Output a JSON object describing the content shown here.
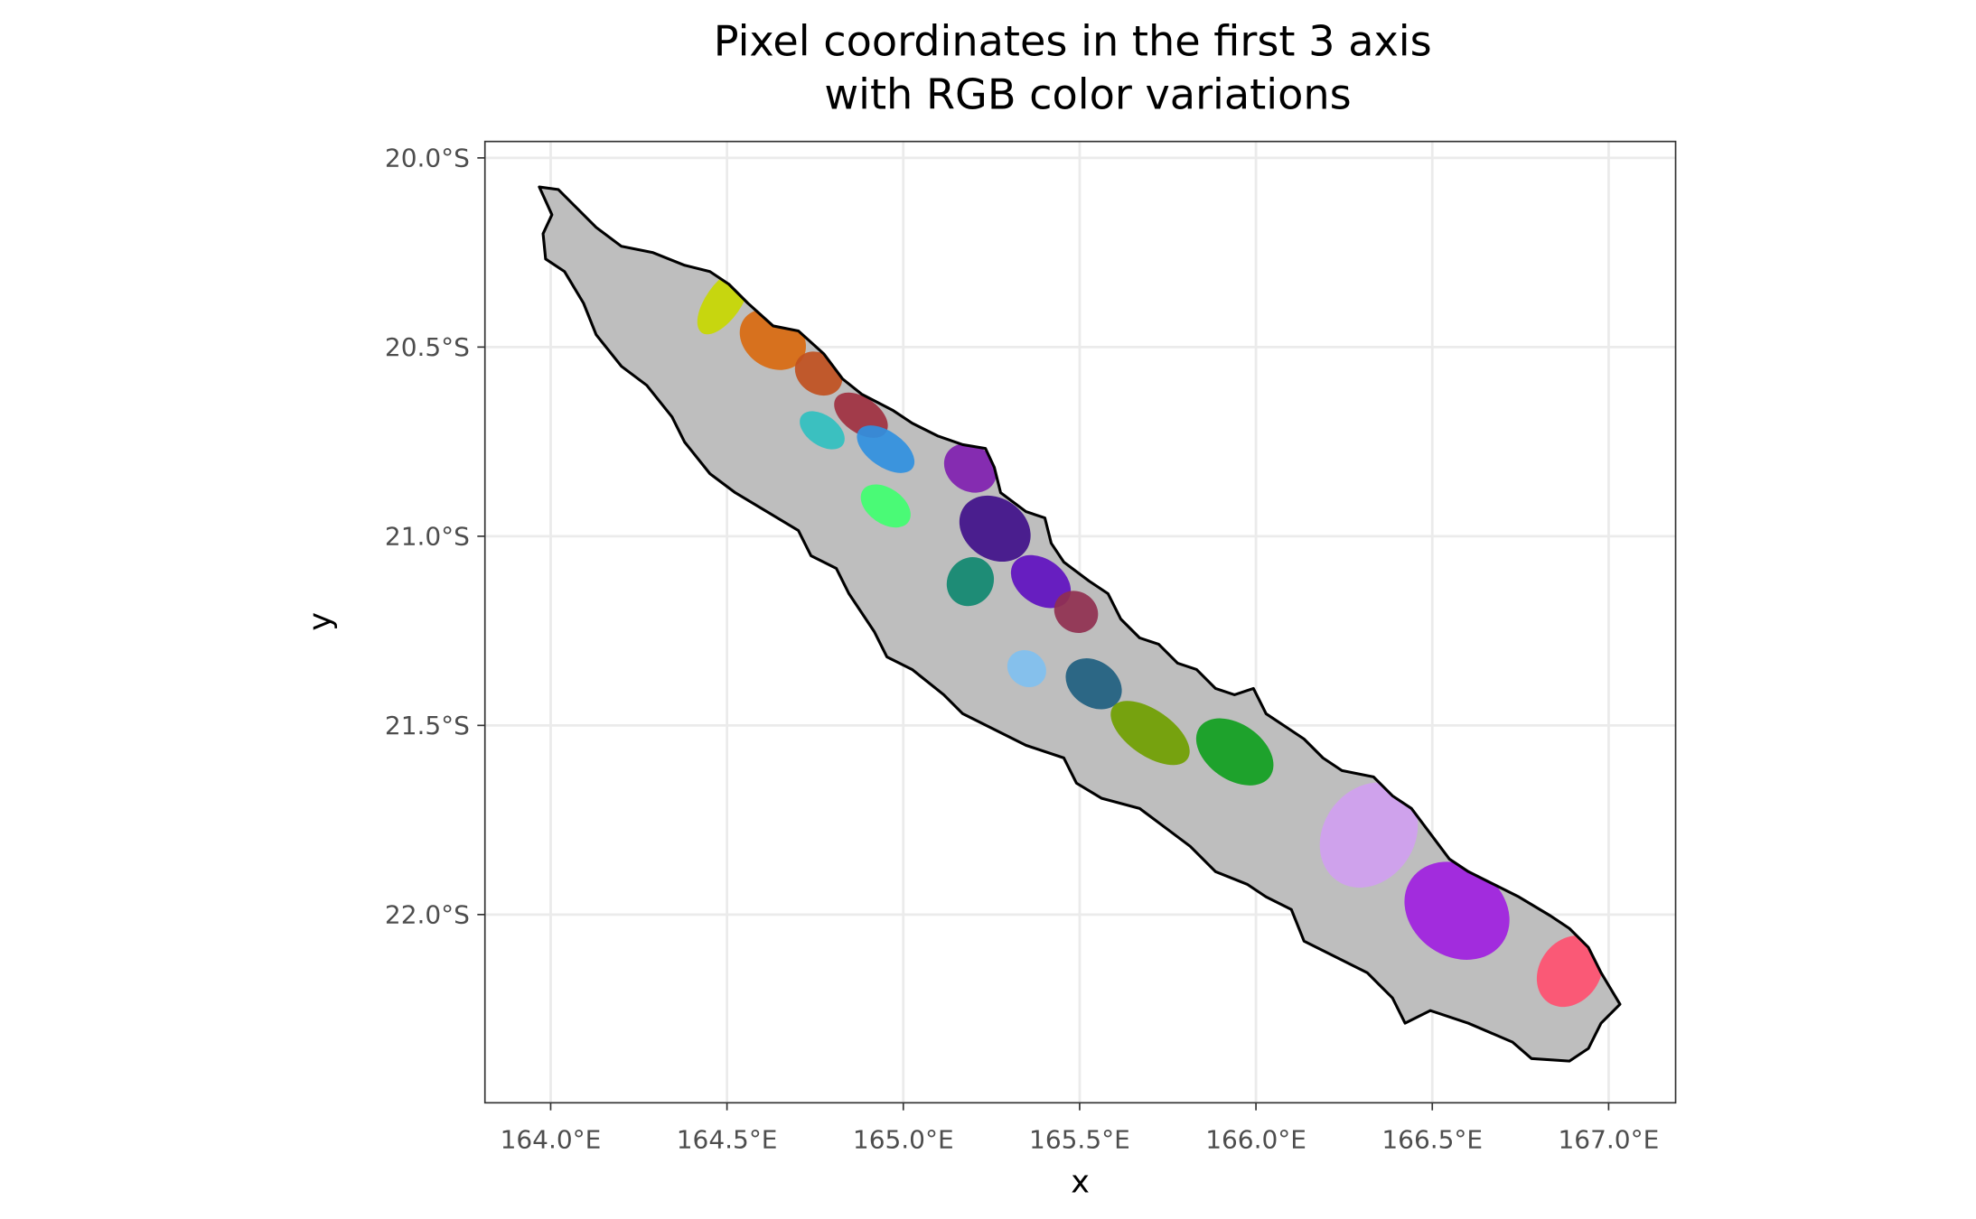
{
  "chart_data": {
    "type": "map",
    "title_line1": "Pixel coordinates in the first 3 axis",
    "title_line2": "with RGB color variations",
    "xlabel": "x",
    "ylabel": "y",
    "xlim": [
      163.82,
      167.18
    ],
    "ylim_south": [
      19.96,
      22.5
    ],
    "x_ticks": [
      {
        "value": 164.0,
        "label": "164.0°E"
      },
      {
        "value": 164.5,
        "label": "164.5°E"
      },
      {
        "value": 165.0,
        "label": "165.0°E"
      },
      {
        "value": 165.5,
        "label": "165.5°E"
      },
      {
        "value": 166.0,
        "label": "166.0°E"
      },
      {
        "value": 166.5,
        "label": "166.5°E"
      },
      {
        "value": 167.0,
        "label": "167.0°E"
      }
    ],
    "y_ticks": [
      {
        "value": 20.0,
        "label": "20.0°S"
      },
      {
        "value": 20.5,
        "label": "20.5°S"
      },
      {
        "value": 21.0,
        "label": "21.0°S"
      },
      {
        "value": 21.5,
        "label": "21.5°S"
      },
      {
        "value": 22.0,
        "label": "22.0°S"
      }
    ],
    "land_color": "#bebebe",
    "outline_color": "#000000",
    "raster_patches": [
      {
        "lon": 164.49,
        "lat": 20.38,
        "color": "#c8d800"
      },
      {
        "lon": 164.63,
        "lat": 20.48,
        "color": "#d96a10"
      },
      {
        "lon": 164.76,
        "lat": 20.57,
        "color": "#c05020"
      },
      {
        "lon": 164.88,
        "lat": 20.68,
        "color": "#a03040"
      },
      {
        "lon": 164.77,
        "lat": 20.72,
        "color": "#30c0c0"
      },
      {
        "lon": 164.95,
        "lat": 20.77,
        "color": "#3090e0"
      },
      {
        "lon": 164.95,
        "lat": 20.92,
        "color": "#40ff70"
      },
      {
        "lon": 165.19,
        "lat": 20.82,
        "color": "#8020b0"
      },
      {
        "lon": 165.26,
        "lat": 20.98,
        "color": "#40108a"
      },
      {
        "lon": 165.19,
        "lat": 21.12,
        "color": "#108870"
      },
      {
        "lon": 165.39,
        "lat": 21.12,
        "color": "#6010c0"
      },
      {
        "lon": 165.49,
        "lat": 21.2,
        "color": "#903050"
      },
      {
        "lon": 165.35,
        "lat": 21.35,
        "color": "#80c0f0"
      },
      {
        "lon": 165.54,
        "lat": 21.39,
        "color": "#206080"
      },
      {
        "lon": 165.7,
        "lat": 21.52,
        "color": "#70a000"
      },
      {
        "lon": 165.94,
        "lat": 21.57,
        "color": "#10a020"
      },
      {
        "lon": 166.32,
        "lat": 21.79,
        "color": "#d0a0f0"
      },
      {
        "lon": 166.57,
        "lat": 21.99,
        "color": "#a020e0"
      },
      {
        "lon": 166.89,
        "lat": 22.15,
        "color": "#ff5070"
      }
    ]
  }
}
